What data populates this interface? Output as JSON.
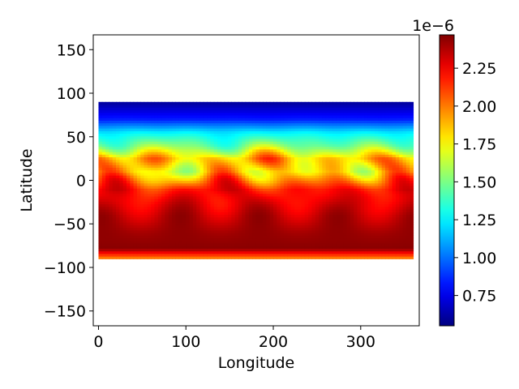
{
  "chart_data": {
    "type": "heatmap",
    "title": "",
    "xlabel": "Longitude",
    "ylabel": "Latitude",
    "xlim": [
      -6,
      367
    ],
    "ylim": [
      -167,
      167
    ],
    "x_ticks": [
      0,
      100,
      200,
      300
    ],
    "x_tick_labels": [
      "0",
      "100",
      "200",
      "300"
    ],
    "y_ticks": [
      150,
      100,
      50,
      0,
      -50,
      -100,
      -150
    ],
    "y_tick_labels": [
      "150",
      "100",
      "50",
      "0",
      "−50",
      "−100",
      "−150"
    ],
    "data_extent": {
      "lon": [
        0,
        360
      ],
      "lat": [
        -90,
        90
      ]
    },
    "colormap": "jet",
    "colorbar": {
      "vmin": 0.55,
      "vmax": 2.47,
      "ticks": [
        0.75,
        1.0,
        1.25,
        1.5,
        1.75,
        2.0,
        2.25
      ],
      "tick_labels": [
        "0.75",
        "1.00",
        "1.25",
        "1.50",
        "1.75",
        "2.00",
        "2.25"
      ],
      "scale_label": "1e−6"
    },
    "grid": false,
    "field_description_lat_profile": [
      {
        "lat": 90,
        "value": 0.6
      },
      {
        "lat": 70,
        "value": 0.85
      },
      {
        "lat": 55,
        "value": 1.25
      },
      {
        "lat": 40,
        "value": 1.5
      },
      {
        "lat": 25,
        "value": 1.9
      },
      {
        "lat": 10,
        "value": 1.8
      },
      {
        "lat": -10,
        "value": 2.2
      },
      {
        "lat": -40,
        "value": 2.35
      },
      {
        "lat": -60,
        "value": 2.42
      },
      {
        "lat": -78,
        "value": 2.45
      },
      {
        "lat": -85,
        "value": 2.15
      },
      {
        "lat": -90,
        "value": 1.95
      }
    ]
  }
}
